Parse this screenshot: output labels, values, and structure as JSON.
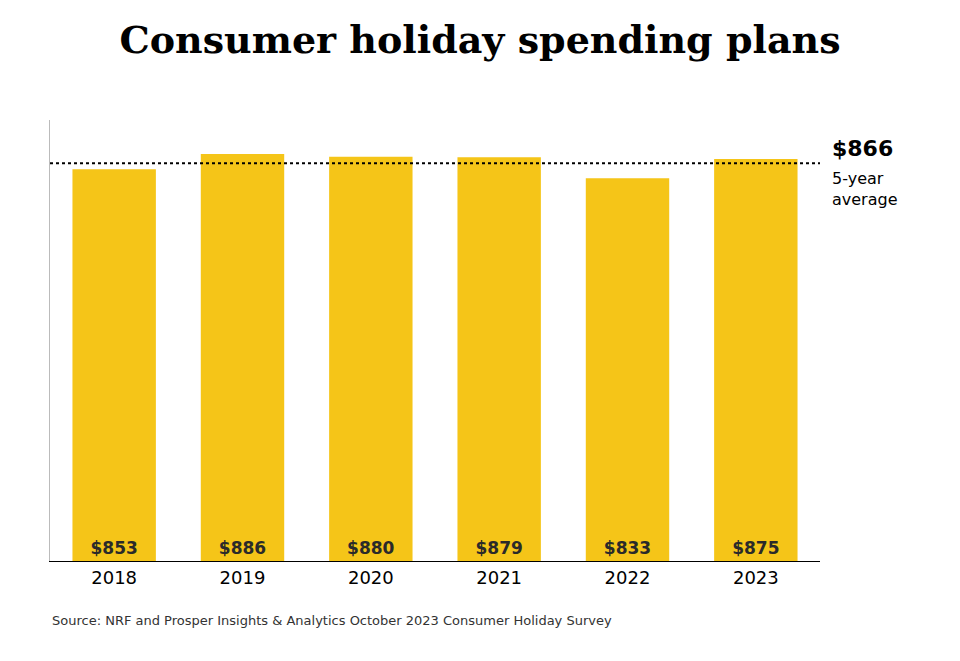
{
  "chart_data": {
    "type": "bar",
    "title": "Consumer holiday spending plans",
    "categories": [
      "2018",
      "2019",
      "2020",
      "2021",
      "2022",
      "2023"
    ],
    "values": [
      853,
      886,
      880,
      879,
      833,
      875
    ],
    "value_labels": [
      "$853",
      "$886",
      "$880",
      "$879",
      "$833",
      "$875"
    ],
    "data_labels": true,
    "color": "#F5C518",
    "ylim": [
      0,
      960
    ],
    "tick_labels": "x",
    "grid": false,
    "average_line": 866,
    "average_label": "$866",
    "average_text": "5-year\naverage",
    "source": "Source: NRF and Prosper Insights & Analytics October 2023 Consumer Holiday Survey"
  }
}
